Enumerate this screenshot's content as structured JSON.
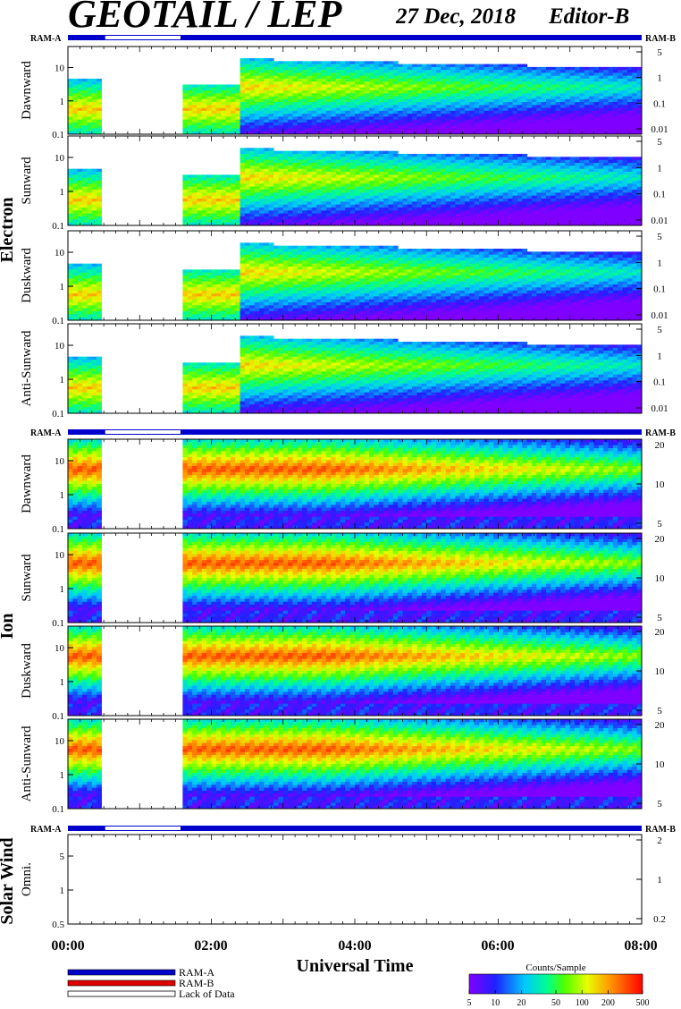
{
  "header": {
    "title": "GEOTAIL / LEP",
    "date": "27 Dec, 2018",
    "editor": "Editor-B"
  },
  "ram": {
    "left": "RAM-A",
    "right": "RAM-B"
  },
  "chart_data": {
    "type": "heatmap",
    "xlabel": "Universal Time",
    "x_ticks": [
      "00:00",
      "02:00",
      "04:00",
      "06:00",
      "08:00"
    ],
    "x_range_hours": [
      0,
      8
    ],
    "data_gap_hours": [
      0.52,
      1.57
    ],
    "groups": [
      {
        "name": "Electron",
        "left_ticks": [
          "10",
          "1",
          "0.1"
        ],
        "panels": [
          {
            "name": "Dawnward",
            "right_ticks": [
              "5",
              "1",
              "0.1",
              "0.01"
            ]
          },
          {
            "name": "Sunward",
            "right_ticks": [
              "5",
              "1",
              "0.1",
              "0.01"
            ]
          },
          {
            "name": "Duskward",
            "right_ticks": [
              "5",
              "1",
              "0.1",
              "0.01"
            ]
          },
          {
            "name": "Anti-Sunward",
            "right_ticks": [
              "5",
              "1",
              "0.1",
              "0.01"
            ]
          }
        ]
      },
      {
        "name": "Ion",
        "left_ticks": [
          "10",
          "1",
          "0.1"
        ],
        "panels": [
          {
            "name": "Dawnward",
            "right_ticks": [
              "20",
              "10",
              "5"
            ]
          },
          {
            "name": "Sunward",
            "right_ticks": [
              "20",
              "10",
              "5"
            ]
          },
          {
            "name": "Duskward",
            "right_ticks": [
              "20",
              "10",
              "5"
            ]
          },
          {
            "name": "Anti-Sunward",
            "right_ticks": [
              "20",
              "10",
              "5"
            ]
          }
        ]
      },
      {
        "name": "Solar Wind",
        "left_ticks": [
          "5",
          "1",
          "0.5"
        ],
        "panels": [
          {
            "name": "Omni.",
            "right_ticks": [
              "2",
              "1",
              "0.2"
            ]
          }
        ]
      }
    ]
  },
  "legend": {
    "ram_a": "RAM-A",
    "ram_b": "RAM-B",
    "lack": "Lack of Data",
    "ram_a_color": "#0000cc",
    "ram_b_color": "#dd0000"
  },
  "colorbar": {
    "title": "Counts/Sample",
    "ticks": [
      "5",
      "10",
      "20",
      "50",
      "100",
      "200",
      "500"
    ]
  }
}
